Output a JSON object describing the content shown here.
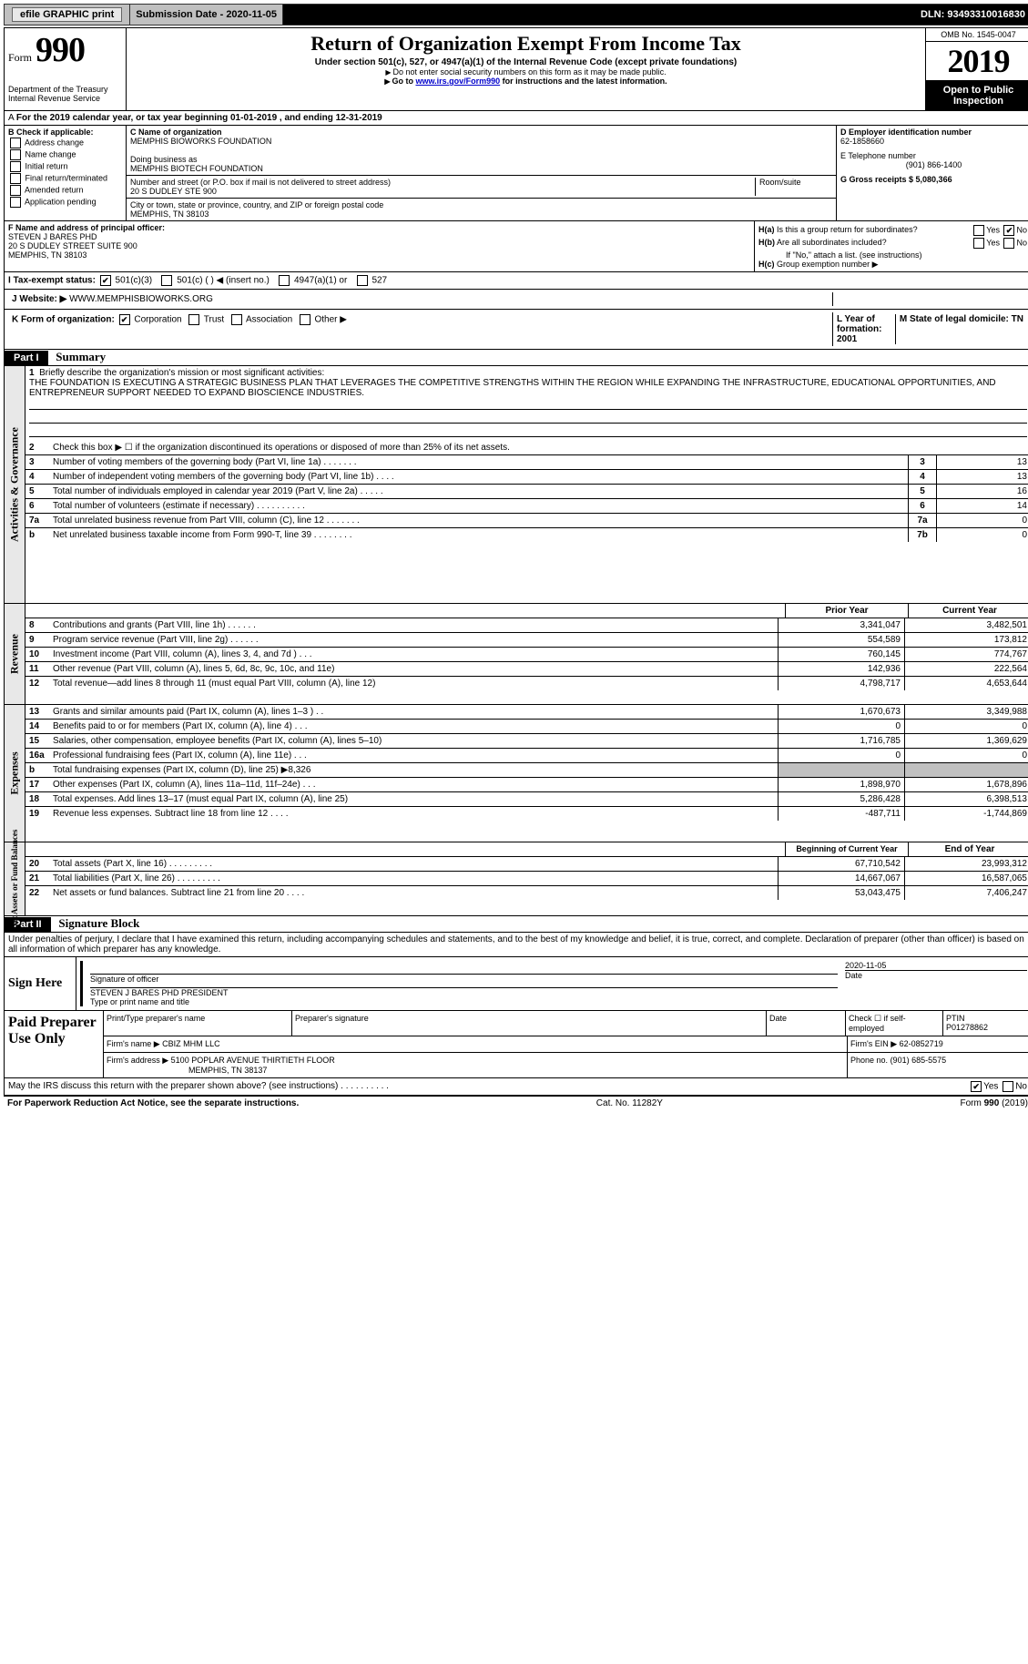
{
  "topbar": {
    "efile": "efile GRAPHIC print",
    "submission_label": "Submission Date - 2020-11-05",
    "dln_label": "DLN: 93493310016830"
  },
  "header": {
    "form_label": "Form",
    "form_number": "990",
    "dept1": "Department of the Treasury",
    "dept2": "Internal Revenue Service",
    "title": "Return of Organization Exempt From Income Tax",
    "sub": "Under section 501(c), 527, or 4947(a)(1) of the Internal Revenue Code (except private foundations)",
    "note1": "Do not enter social security numbers on this form as it may be made public.",
    "note2_pre": "Go to ",
    "note2_link": "www.irs.gov/Form990",
    "note2_post": " for instructions and the latest information.",
    "omb": "OMB No. 1545-0047",
    "year": "2019",
    "otp": "Open to Public Inspection"
  },
  "line_a": "For the 2019 calendar year, or tax year beginning 01-01-2019   , and ending 12-31-2019",
  "box_b": {
    "title": "B Check if applicable:",
    "items": [
      "Address change",
      "Name change",
      "Initial return",
      "Final return/terminated",
      "Amended return",
      "Application pending"
    ]
  },
  "box_c": {
    "name_label": "C Name of organization",
    "name": "MEMPHIS BIOWORKS FOUNDATION",
    "dba_label": "Doing business as",
    "dba": "MEMPHIS BIOTECH FOUNDATION",
    "street_label": "Number and street (or P.O. box if mail is not delivered to street address)",
    "street": "20 S DUDLEY STE 900",
    "room_label": "Room/suite",
    "city_label": "City or town, state or province, country, and ZIP or foreign postal code",
    "city": "MEMPHIS, TN  38103"
  },
  "box_d": {
    "ein_label": "D Employer identification number",
    "ein": "62-1858660"
  },
  "box_e": {
    "label": "E Telephone number",
    "phone": "(901) 866-1400"
  },
  "box_g": {
    "label": "G Gross receipts $ 5,080,366"
  },
  "box_f": {
    "label": "F  Name and address of principal officer:",
    "name": "STEVEN J BARES PHD",
    "addr1": "20 S DUDLEY STREET SUITE 900",
    "addr2": "MEMPHIS, TN  38103"
  },
  "box_h": {
    "a": "Is this a group return for subordinates?",
    "b": "Are all subordinates included?",
    "note": "If \"No,\" attach a list. (see instructions)",
    "c": "Group exemption number ▶"
  },
  "box_i": {
    "label": "I   Tax-exempt status:",
    "o1": "501(c)(3)",
    "o2": "501(c) (  ) ◀ (insert no.)",
    "o3": "4947(a)(1) or",
    "o4": "527"
  },
  "box_j": {
    "label": "J   Website: ▶",
    "val": "WWW.MEMPHISBIOWORKS.ORG"
  },
  "box_k": {
    "label": "K Form of organization:",
    "o1": "Corporation",
    "o2": "Trust",
    "o3": "Association",
    "o4": "Other ▶"
  },
  "box_l": "L Year of formation: 2001",
  "box_m": "M State of legal domicile: TN",
  "part1": {
    "num": "Part I",
    "title": "Summary"
  },
  "summary": {
    "l1": "Briefly describe the organization's mission or most significant activities:",
    "mission": "THE FOUNDATION IS EXECUTING A STRATEGIC BUSINESS PLAN THAT LEVERAGES THE COMPETITIVE STRENGTHS WITHIN THE REGION WHILE EXPANDING THE INFRASTRUCTURE, EDUCATIONAL OPPORTUNITIES, AND ENTREPRENEUR SUPPORT NEEDED TO EXPAND BIOSCIENCE INDUSTRIES.",
    "l2": "Check this box ▶ ☐  if the organization discontinued its operations or disposed of more than 25% of its net assets.",
    "l3": "Number of voting members of the governing body (Part VI, line 1a)   .    .    .    .    .    .    .",
    "l4": "Number of independent voting members of the governing body (Part VI, line 1b)   .    .    .    .",
    "l5": "Total number of individuals employed in calendar year 2019 (Part V, line 2a)   .    .    .    .    .",
    "l6": "Total number of volunteers (estimate if necessary)   .    .    .    .    .    .    .    .    .    .",
    "l7a": "Total unrelated business revenue from Part VIII, column (C), line 12   .    .    .    .    .    .    .",
    "l7b": "Net unrelated business taxable income from Form 990-T, line 39   .    .    .    .    .    .    .    .",
    "v3": "13",
    "v4": "13",
    "v5": "16",
    "v6": "14",
    "v7a": "0",
    "v7b": "0",
    "prior": "Prior Year",
    "current": "Current Year"
  },
  "revenue": [
    {
      "n": "8",
      "t": "Contributions and grants (Part VIII, line 1h)   .    .    .    .    .    .",
      "p": "3,341,047",
      "c": "3,482,501"
    },
    {
      "n": "9",
      "t": "Program service revenue (Part VIII, line 2g)   .    .    .    .    .    .",
      "p": "554,589",
      "c": "173,812"
    },
    {
      "n": "10",
      "t": "Investment income (Part VIII, column (A), lines 3, 4, and 7d )   .    .    .",
      "p": "760,145",
      "c": "774,767"
    },
    {
      "n": "11",
      "t": "Other revenue (Part VIII, column (A), lines 5, 6d, 8c, 9c, 10c, and 11e)",
      "p": "142,936",
      "c": "222,564"
    },
    {
      "n": "12",
      "t": "Total revenue—add lines 8 through 11 (must equal Part VIII, column (A), line 12)",
      "p": "4,798,717",
      "c": "4,653,644"
    }
  ],
  "expenses": [
    {
      "n": "13",
      "t": "Grants and similar amounts paid (Part IX, column (A), lines 1–3 )   .    .",
      "p": "1,670,673",
      "c": "3,349,988"
    },
    {
      "n": "14",
      "t": "Benefits paid to or for members (Part IX, column (A), line 4)   .    .    .",
      "p": "0",
      "c": "0"
    },
    {
      "n": "15",
      "t": "Salaries, other compensation, employee benefits (Part IX, column (A), lines 5–10)",
      "p": "1,716,785",
      "c": "1,369,629"
    },
    {
      "n": "16a",
      "t": "Professional fundraising fees (Part IX, column (A), line 11e)   .    .    .",
      "p": "0",
      "c": "0"
    },
    {
      "n": "b",
      "t": "Total fundraising expenses (Part IX, column (D), line 25) ▶8,326",
      "p": "",
      "c": "",
      "grey": true
    },
    {
      "n": "17",
      "t": "Other expenses (Part IX, column (A), lines 11a–11d, 11f–24e)   .    .    .",
      "p": "1,898,970",
      "c": "1,678,896"
    },
    {
      "n": "18",
      "t": "Total expenses. Add lines 13–17 (must equal Part IX, column (A), line 25)",
      "p": "5,286,428",
      "c": "6,398,513"
    },
    {
      "n": "19",
      "t": "Revenue less expenses. Subtract line 18 from line 12   .    .    .    .",
      "p": "-487,711",
      "c": "-1,744,869"
    }
  ],
  "netassets_hdr": {
    "p": "Beginning of Current Year",
    "c": "End of Year"
  },
  "netassets": [
    {
      "n": "20",
      "t": "Total assets (Part X, line 16)   .    .    .    .    .    .    .    .    .",
      "p": "67,710,542",
      "c": "23,993,312"
    },
    {
      "n": "21",
      "t": "Total liabilities (Part X, line 26)   .    .    .    .    .    .    .    .    .",
      "p": "14,667,067",
      "c": "16,587,065"
    },
    {
      "n": "22",
      "t": "Net assets or fund balances. Subtract line 21 from line 20   .    .    .    .",
      "p": "53,043,475",
      "c": "7,406,247"
    }
  ],
  "part2": {
    "num": "Part II",
    "title": "Signature Block"
  },
  "sig_declare": "Under penalties of perjury, I declare that I have examined this return, including accompanying schedules and statements, and to the best of my knowledge and belief, it is true, correct, and complete. Declaration of preparer (other than officer) is based on all information of which preparer has any knowledge.",
  "sign": {
    "here": "Sign Here",
    "sig_label": "Signature of officer",
    "date_label": "Date",
    "date": "2020-11-05",
    "name": "STEVEN J BARES PHD  PRESIDENT",
    "name_label": "Type or print name and title"
  },
  "prep": {
    "here": "Paid Preparer Use Only",
    "r1_a": "Print/Type preparer's name",
    "r1_b": "Preparer's signature",
    "r1_c": "Date",
    "r1_d": "Check ☐ if self-employed",
    "r1_e_lbl": "PTIN",
    "r1_e": "P01278862",
    "r2_a_lbl": "Firm's name    ▶",
    "r2_a": "CBIZ MHM LLC",
    "r2_b_lbl": "Firm's EIN ▶",
    "r2_b": "62-0852719",
    "r3_a_lbl": "Firm's address ▶",
    "r3_a": "5100 POPLAR AVENUE THIRTIETH FLOOR",
    "r3_a2": "MEMPHIS, TN  38137",
    "r3_b_lbl": "Phone no.",
    "r3_b": "(901) 685-5575"
  },
  "discuss": "May the IRS discuss this return with the preparer shown above? (see instructions)   .    .    .    .    .    .    .    .    .    .",
  "footer": {
    "pra": "For Paperwork Reduction Act Notice, see the separate instructions.",
    "cat": "Cat. No. 11282Y",
    "form": "Form 990 (2019)"
  },
  "vtabs": {
    "ag": "Activities & Governance",
    "rev": "Revenue",
    "exp": "Expenses",
    "na": "Net Assets or Fund Balances"
  }
}
